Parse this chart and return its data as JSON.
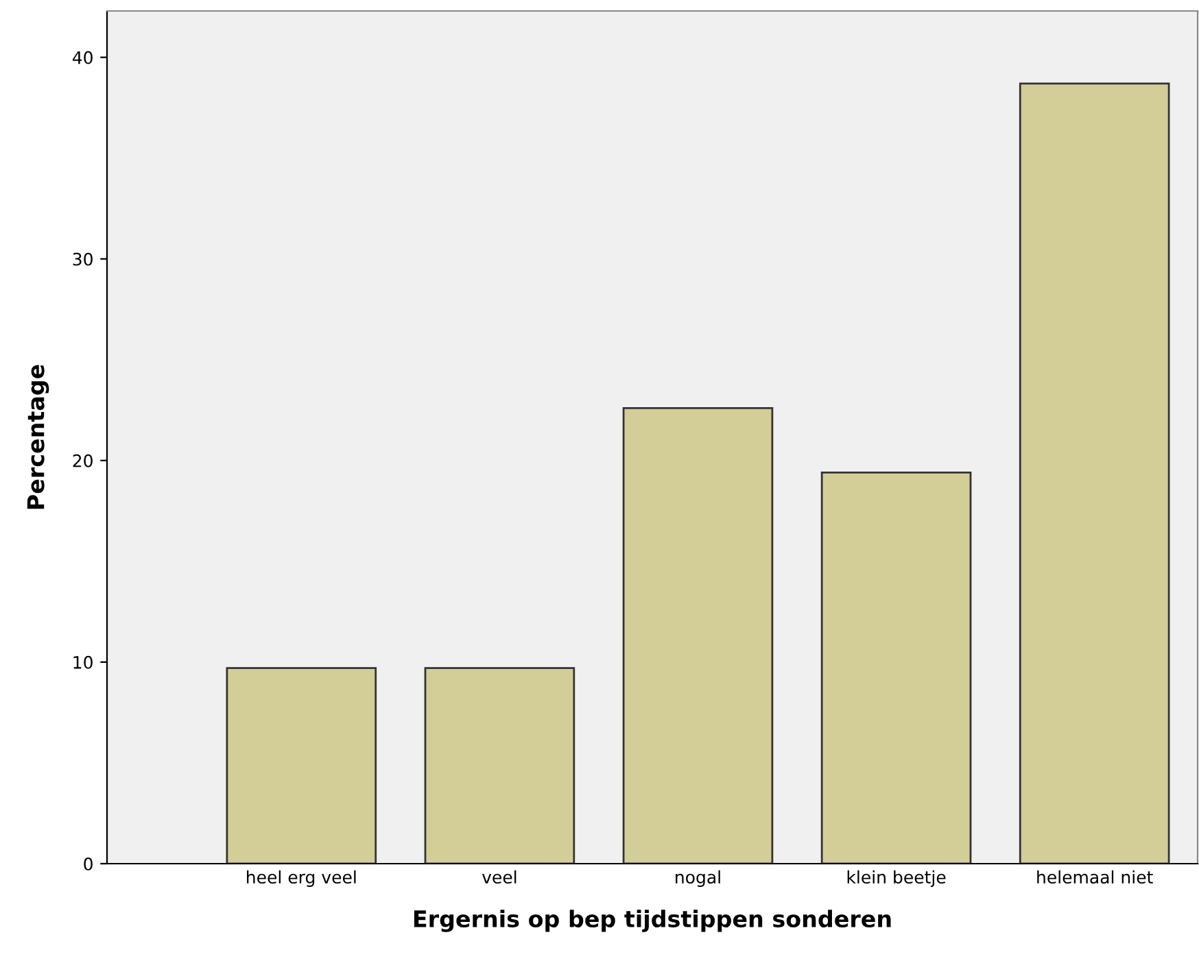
{
  "chart_data": {
    "type": "bar",
    "xlabel": "Ergernis op bep tijdstippen sonderen",
    "ylabel": "Percentage",
    "categories": [
      "heel erg veel",
      "veel",
      "nogal",
      "klein beetje",
      "helemaal niet"
    ],
    "values": [
      9.7,
      9.7,
      22.6,
      19.4,
      38.7
    ],
    "color": "#d3ce97",
    "ylim": [
      0,
      42.3
    ],
    "yticks": [
      0,
      10,
      20,
      30,
      40
    ],
    "grid": false
  }
}
